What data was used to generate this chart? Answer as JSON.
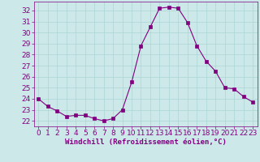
{
  "hours": [
    0,
    1,
    2,
    3,
    4,
    5,
    6,
    7,
    8,
    9,
    10,
    11,
    12,
    13,
    14,
    15,
    16,
    17,
    18,
    19,
    20,
    21,
    22,
    23
  ],
  "values": [
    24.0,
    23.3,
    22.9,
    22.4,
    22.5,
    22.5,
    22.2,
    22.0,
    22.2,
    23.0,
    25.5,
    28.8,
    30.5,
    32.2,
    32.3,
    32.2,
    30.9,
    28.8,
    27.4,
    26.5,
    25.0,
    24.9,
    24.2,
    23.7
  ],
  "line_color": "#800080",
  "marker": "s",
  "marker_size": 2.5,
  "bg_color": "#cce8e8",
  "grid_color": "#aad4d4",
  "xlabel": "Windchill (Refroidissement éolien,°C)",
  "ylim": [
    21.5,
    32.8
  ],
  "yticks": [
    22,
    23,
    24,
    25,
    26,
    27,
    28,
    29,
    30,
    31,
    32
  ],
  "xticks": [
    0,
    1,
    2,
    3,
    4,
    5,
    6,
    7,
    8,
    9,
    10,
    11,
    12,
    13,
    14,
    15,
    16,
    17,
    18,
    19,
    20,
    21,
    22,
    23
  ],
  "xlabel_color": "#800080",
  "tick_color": "#800080",
  "axis_color": "#800080",
  "font_size": 6.5
}
